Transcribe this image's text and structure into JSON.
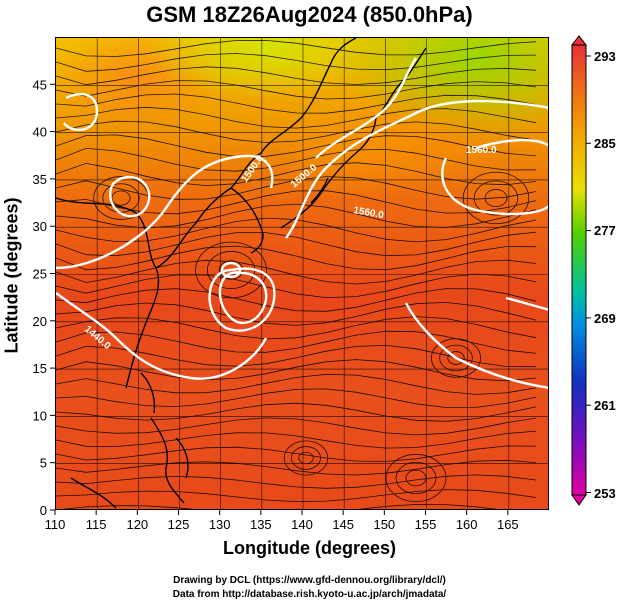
{
  "title": "GSM 18Z26Aug2024 (850.0hPa)",
  "xlabel": "Longitude (degrees)",
  "ylabel": "Latitude  (degrees)",
  "x_ticks": [
    "110",
    "115",
    "120",
    "125",
    "130",
    "135",
    "140",
    "145",
    "150",
    "155",
    "160",
    "165"
  ],
  "y_ticks": [
    "0",
    "5",
    "10",
    "15",
    "20",
    "25",
    "30",
    "35",
    "40",
    "45"
  ],
  "colorbar": {
    "labels": [
      "293",
      "285",
      "277",
      "269",
      "261",
      "253"
    ],
    "colors": [
      "#e8303a",
      "#f08a00",
      "#f2d000",
      "#60d000",
      "#00b0b0",
      "#0080e0",
      "#2020c0",
      "#8000c0",
      "#e000a0"
    ]
  },
  "contour_labels": [
    "1500.0",
    "1500.0",
    "1560.0",
    "1560.0",
    "1440.0"
  ],
  "credits": {
    "line1": "Drawing by DCL (https://www.gfd-dennou.org/library/dcl/)",
    "line2": "Data from http://database.rish.kyoto-u.ac.jp/arch/jmadata/"
  }
}
